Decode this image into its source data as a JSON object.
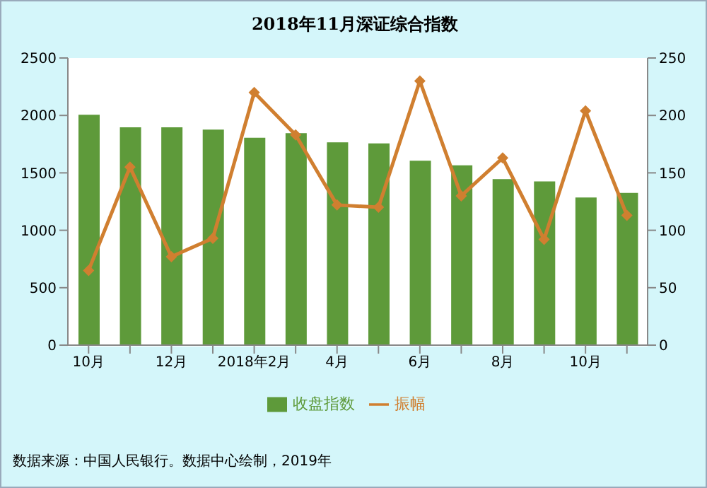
{
  "chart_data": {
    "type": "bar",
    "title": "2018年11月深证综合指数",
    "categories": [
      "10月",
      null,
      "12月",
      null,
      "2018年2月",
      null,
      "4月",
      null,
      "6月",
      null,
      "8月",
      null,
      "10月",
      null
    ],
    "series": [
      {
        "name": "收盘指数",
        "color": "#5e9a3a",
        "values": [
          2000,
          1890,
          1890,
          1870,
          1800,
          1840,
          1760,
          1750,
          1600,
          1560,
          1440,
          1420,
          1280,
          1320
        ]
      },
      {
        "name": "振幅",
        "type": "line",
        "axis": "y2",
        "color": "#d07f30",
        "marker": "diamond",
        "values": [
          65,
          155,
          77,
          93,
          220,
          183,
          122,
          120,
          230,
          130,
          163,
          92,
          204,
          113
        ]
      }
    ],
    "ylim": [
      0,
      2500
    ],
    "yticks": [
      0,
      500,
      1000,
      1500,
      2000,
      2500
    ],
    "y2lim": [
      0,
      250
    ],
    "y2ticks": [
      0,
      50,
      100,
      150,
      200,
      250
    ],
    "grid": false,
    "legend": "bottom",
    "annotations": [
      "数据来源：中国人民银行。数据中心绘制，2019年"
    ]
  }
}
